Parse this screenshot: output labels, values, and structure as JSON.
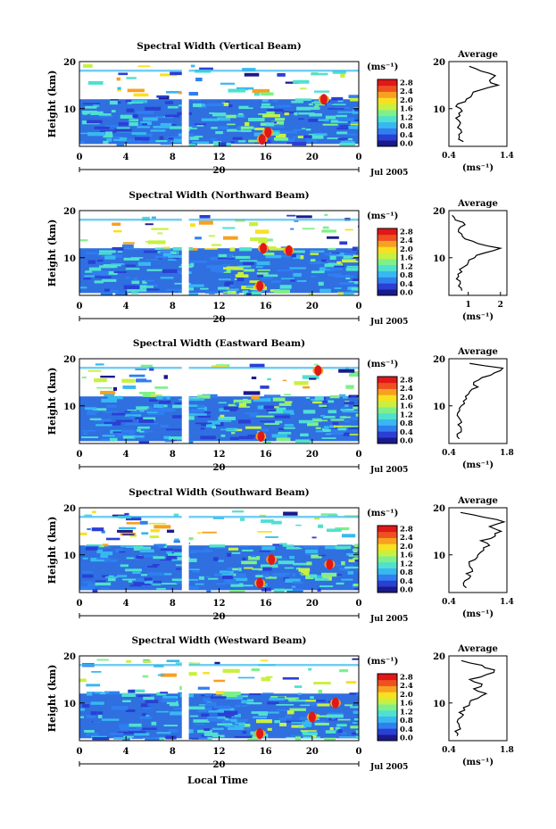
{
  "figure": {
    "xlabel": "Local Time",
    "ylabel": "Height (km)",
    "colorbar_unit": "(ms⁻¹)",
    "colorbar_ticks": [
      "0.0",
      "0.4",
      "0.8",
      "1.2",
      "1.6",
      "2.0",
      "2.4",
      "2.8"
    ],
    "colorbar_colors": [
      "#1a1a8c",
      "#2a3fd4",
      "#2f7ff0",
      "#38b8f0",
      "#4fe0d0",
      "#7ef08a",
      "#c8f040",
      "#f8e020",
      "#f8a020",
      "#f05020",
      "#e01818"
    ],
    "x_ticks": [
      "0",
      "4",
      "8",
      "12",
      "16",
      "20",
      "0"
    ],
    "day_label": "20",
    "date_label": "Jul 2005",
    "avg_title": "Average",
    "avg_xlabel": "(ms⁻¹)"
  },
  "chart_data": [
    {
      "type": "heatmap",
      "title": "Spectral Width (Vertical Beam)",
      "x_range_hours": [
        0,
        24
      ],
      "y_range_km": [
        2,
        20
      ],
      "y_ticks": [
        10,
        20
      ],
      "gap_hours": [
        8.8,
        9.4
      ],
      "hot_spots": [
        [
          15.7,
          3.5
        ],
        [
          16.2,
          5.0
        ],
        [
          21.0,
          12.0
        ]
      ],
      "average_profile": {
        "xlim": [
          0.4,
          1.4
        ],
        "xticks": [
          "0.4",
          "1.4"
        ],
        "height_km": [
          3,
          4,
          5,
          6,
          7,
          8,
          9,
          10,
          11,
          12,
          13,
          14,
          15,
          16,
          17,
          18,
          19
        ],
        "values": [
          0.65,
          0.58,
          0.62,
          0.55,
          0.6,
          0.52,
          0.57,
          0.6,
          0.55,
          0.7,
          0.8,
          0.95,
          1.25,
          1.1,
          1.2,
          0.95,
          0.75
        ]
      }
    },
    {
      "type": "heatmap",
      "title": "Spectral Width (Northward Beam)",
      "x_range_hours": [
        0,
        24
      ],
      "y_range_km": [
        2,
        20
      ],
      "y_ticks": [
        10,
        20
      ],
      "gap_hours": [
        8.8,
        9.4
      ],
      "hot_spots": [
        [
          15.5,
          4.0
        ],
        [
          15.8,
          12.0
        ],
        [
          18.0,
          11.5
        ]
      ],
      "average_profile": {
        "xlim": [
          0.4,
          2.2
        ],
        "xticks": [
          "1",
          "2"
        ],
        "height_km": [
          3,
          4,
          5,
          6,
          7,
          8,
          9,
          10,
          11,
          12,
          13,
          14,
          15,
          16,
          17,
          18,
          19
        ],
        "values": [
          0.8,
          0.7,
          0.75,
          0.7,
          0.8,
          0.85,
          1.0,
          1.2,
          1.5,
          2.0,
          1.3,
          0.9,
          0.8,
          0.7,
          0.9,
          0.6,
          0.5
        ]
      }
    },
    {
      "type": "heatmap",
      "title": "Spectral Width (Eastward Beam)",
      "x_range_hours": [
        0,
        24
      ],
      "y_range_km": [
        2,
        20
      ],
      "y_ticks": [
        10,
        20
      ],
      "gap_hours": [
        8.8,
        9.4
      ],
      "hot_spots": [
        [
          15.6,
          3.5
        ],
        [
          20.5,
          17.5
        ]
      ],
      "average_profile": {
        "xlim": [
          0.4,
          1.8
        ],
        "xticks": [
          "0.4",
          "1.8"
        ],
        "height_km": [
          3,
          4,
          5,
          6,
          7,
          8,
          9,
          10,
          11,
          12,
          13,
          14,
          15,
          16,
          17,
          18,
          19
        ],
        "values": [
          0.65,
          0.6,
          0.7,
          0.62,
          0.68,
          0.6,
          0.66,
          0.7,
          0.75,
          0.8,
          0.9,
          1.1,
          1.0,
          1.2,
          1.5,
          1.7,
          0.9
        ]
      }
    },
    {
      "type": "heatmap",
      "title": "Spectral Width (Southward Beam)",
      "x_range_hours": [
        0,
        24
      ],
      "y_range_km": [
        2,
        20
      ],
      "y_ticks": [
        10,
        20
      ],
      "gap_hours": [
        8.8,
        9.4
      ],
      "hot_spots": [
        [
          15.5,
          4.0
        ],
        [
          16.5,
          9.0
        ],
        [
          21.5,
          8.0
        ]
      ],
      "average_profile": {
        "xlim": [
          0.4,
          1.4
        ],
        "xticks": [
          "0.4",
          "1.4"
        ],
        "height_km": [
          3,
          4,
          5,
          6,
          7,
          8,
          9,
          10,
          11,
          12,
          13,
          14,
          15,
          16,
          17,
          18,
          19
        ],
        "values": [
          0.7,
          0.65,
          0.75,
          0.7,
          0.8,
          0.75,
          0.85,
          0.9,
          1.0,
          1.1,
          0.95,
          1.2,
          1.3,
          1.1,
          1.35,
          1.0,
          0.6
        ]
      }
    },
    {
      "type": "heatmap",
      "title": "Spectral Width (Westward Beam)",
      "x_range_hours": [
        0,
        24
      ],
      "y_range_km": [
        2,
        20
      ],
      "y_ticks": [
        10,
        20
      ],
      "gap_hours": [
        8.8,
        9.4
      ],
      "hot_spots": [
        [
          15.5,
          3.5
        ],
        [
          20.0,
          7.0
        ],
        [
          22.0,
          10.0
        ]
      ],
      "average_profile": {
        "xlim": [
          0.4,
          1.8
        ],
        "xticks": [
          "0.4",
          "1.8"
        ],
        "height_km": [
          3,
          4,
          5,
          6,
          7,
          8,
          9,
          10,
          11,
          12,
          13,
          14,
          15,
          16,
          17,
          18,
          19
        ],
        "values": [
          0.6,
          0.55,
          0.65,
          0.6,
          0.7,
          0.65,
          0.75,
          0.9,
          1.1,
          1.3,
          1.0,
          1.2,
          0.9,
          1.3,
          1.5,
          1.2,
          0.7
        ]
      }
    }
  ]
}
